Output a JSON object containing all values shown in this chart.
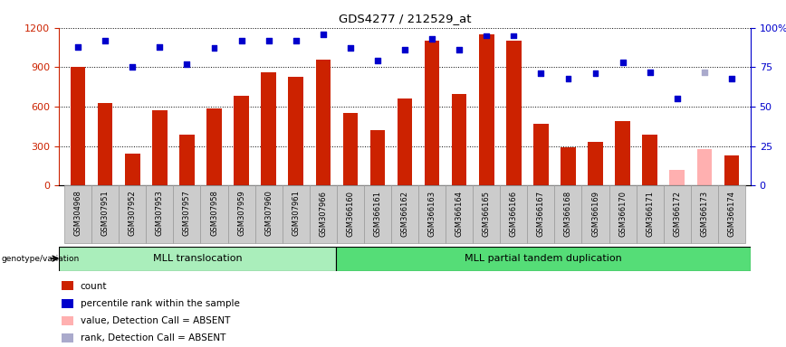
{
  "title": "GDS4277 / 212529_at",
  "categories": [
    "GSM304968",
    "GSM307951",
    "GSM307952",
    "GSM307953",
    "GSM307957",
    "GSM307958",
    "GSM307959",
    "GSM307960",
    "GSM307961",
    "GSM307966",
    "GSM366160",
    "GSM366161",
    "GSM366162",
    "GSM366163",
    "GSM366164",
    "GSM366165",
    "GSM366166",
    "GSM366167",
    "GSM366168",
    "GSM366169",
    "GSM366170",
    "GSM366171",
    "GSM366172",
    "GSM366173",
    "GSM366174"
  ],
  "bar_values": [
    900,
    630,
    240,
    570,
    390,
    590,
    680,
    860,
    830,
    960,
    550,
    420,
    660,
    1100,
    700,
    1150,
    1100,
    470,
    290,
    330,
    490,
    390,
    120,
    280,
    230
  ],
  "bar_absent": [
    false,
    false,
    false,
    false,
    false,
    false,
    false,
    false,
    false,
    false,
    false,
    false,
    false,
    false,
    false,
    false,
    false,
    false,
    false,
    false,
    false,
    false,
    true,
    true,
    false
  ],
  "rank_values": [
    88,
    92,
    75,
    88,
    77,
    87,
    92,
    92,
    92,
    96,
    87,
    79,
    86,
    93,
    86,
    95,
    95,
    71,
    68,
    71,
    78,
    72,
    55,
    72,
    68
  ],
  "rank_absent": [
    false,
    false,
    false,
    false,
    false,
    false,
    false,
    false,
    false,
    false,
    false,
    false,
    false,
    false,
    false,
    false,
    false,
    false,
    false,
    false,
    false,
    false,
    false,
    true,
    false
  ],
  "group1_label": "MLL translocation",
  "group1_count": 10,
  "group2_label": "MLL partial tandem duplication",
  "group2_count": 15,
  "genotype_label": "genotype/variation",
  "ylim_left": [
    0,
    1200
  ],
  "ylim_right": [
    0,
    100
  ],
  "yticks_left": [
    0,
    300,
    600,
    900,
    1200
  ],
  "yticks_right": [
    0,
    25,
    50,
    75,
    100
  ],
  "bar_color": "#cc2200",
  "bar_absent_color": "#ffb0b0",
  "rank_color": "#0000cc",
  "rank_absent_color": "#aaaacc",
  "group_bg_color1": "#aaeebb",
  "group_bg_color2": "#55dd77",
  "tick_label_bg": "#cccccc",
  "legend_items": [
    {
      "label": "count",
      "color": "#cc2200"
    },
    {
      "label": "percentile rank within the sample",
      "color": "#0000cc"
    },
    {
      "label": "value, Detection Call = ABSENT",
      "color": "#ffb0b0"
    },
    {
      "label": "rank, Detection Call = ABSENT",
      "color": "#aaaacc"
    }
  ]
}
